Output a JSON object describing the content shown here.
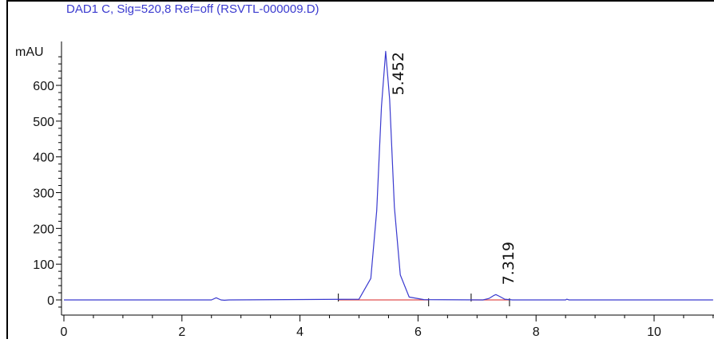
{
  "chart_data": {
    "type": "line",
    "title": "DAD1 C, Sig=520,8 Ref=off (RSVTL-000009.D)",
    "ylabel": "mAU",
    "xlabel": "",
    "xlim": [
      0,
      11
    ],
    "ylim": [
      -30,
      720
    ],
    "x_ticks": [
      0,
      2,
      4,
      6,
      8,
      10
    ],
    "y_ticks": [
      0,
      100,
      200,
      300,
      400,
      500,
      600
    ],
    "grid": false,
    "colors": {
      "trace": "#3a3acf",
      "baseline": "#e05050",
      "title": "#3a3acf",
      "axis": "#000000"
    },
    "series": [
      {
        "values_description_free": true,
        "points": [
          [
            0,
            0
          ],
          [
            2.5,
            0
          ],
          [
            2.58,
            6
          ],
          [
            2.66,
            0
          ],
          [
            2.72,
            -1
          ],
          [
            2.8,
            0
          ],
          [
            5.0,
            2
          ],
          [
            5.2,
            60
          ],
          [
            5.3,
            250
          ],
          [
            5.38,
            540
          ],
          [
            5.452,
            695
          ],
          [
            5.52,
            560
          ],
          [
            5.6,
            260
          ],
          [
            5.7,
            70
          ],
          [
            5.85,
            8
          ],
          [
            6.1,
            1
          ],
          [
            7.1,
            0
          ],
          [
            7.2,
            4
          ],
          [
            7.28,
            12
          ],
          [
            7.319,
            15
          ],
          [
            7.38,
            10
          ],
          [
            7.47,
            2
          ],
          [
            7.6,
            0
          ],
          [
            8.5,
            0
          ],
          [
            8.52,
            2
          ],
          [
            8.56,
            0
          ],
          [
            11,
            0
          ]
        ]
      }
    ],
    "peaks": [
      {
        "rt": 5.452,
        "height": 695,
        "label": "5.452"
      },
      {
        "rt": 7.319,
        "height": 15,
        "label": "7.319"
      }
    ],
    "integration_baselines": [
      {
        "x": [
          4.65,
          6.18
        ],
        "y": [
          0,
          0
        ]
      },
      {
        "x": [
          6.9,
          7.55
        ],
        "y": [
          0,
          0
        ]
      }
    ]
  }
}
